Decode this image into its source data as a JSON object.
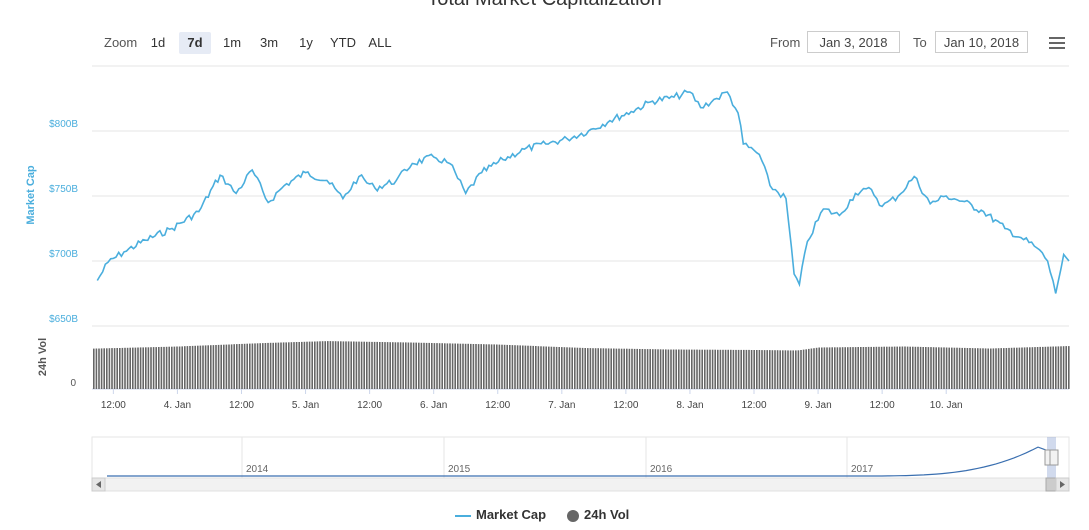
{
  "title": "Total Market Capitalization",
  "toolbar": {
    "zoom_label": "Zoom",
    "zoom_buttons": [
      "1d",
      "7d",
      "1m",
      "3m",
      "1y",
      "YTD",
      "ALL"
    ],
    "active_zoom": "7d",
    "from_label": "From",
    "from_value": "Jan 3, 2018",
    "to_label": "To",
    "to_value": "Jan 10, 2018"
  },
  "colors": {
    "market_cap": "#4aaedd",
    "volume": "#666666",
    "grid": "#e6e6e6",
    "navigator": "#3a6fb0"
  },
  "icons": {
    "menu": "hamburger-menu-icon",
    "scroll_left": "arrow-left-icon",
    "scroll_right": "arrow-right-icon"
  },
  "legend": {
    "market_cap": "Market Cap",
    "volume": "24h Vol"
  },
  "chart_data": {
    "type": "line",
    "xlabel": "",
    "ylabel": "Market Cap",
    "y_ticks": [
      "$800B",
      "$750B",
      "$700B",
      "$650B"
    ],
    "ylim": [
      650,
      850
    ],
    "y_units": "billion USD",
    "x_ticks": [
      "12:00",
      "4. Jan",
      "12:00",
      "5. Jan",
      "12:00",
      "6. Jan",
      "12:00",
      "7. Jan",
      "12:00",
      "8. Jan",
      "12:00",
      "9. Jan",
      "12:00",
      "10. Jan"
    ],
    "xlim": [
      "2018-01-03 08:00",
      "2018-01-10 23:00"
    ],
    "series": [
      {
        "name": "Market Cap",
        "axis": "top",
        "points": [
          [
            "2018-01-03 09:00",
            685
          ],
          [
            "2018-01-03 11:00",
            699
          ],
          [
            "2018-01-03 14:00",
            707
          ],
          [
            "2018-01-03 18:00",
            716
          ],
          [
            "2018-01-03 23:00",
            725
          ],
          [
            "2018-01-04 04:00",
            738
          ],
          [
            "2018-01-04 08:00",
            766
          ],
          [
            "2018-01-04 11:00",
            752
          ],
          [
            "2018-01-04 14:00",
            770
          ],
          [
            "2018-01-04 17:00",
            745
          ],
          [
            "2018-01-04 20:00",
            758
          ],
          [
            "2018-01-05 00:00",
            768
          ],
          [
            "2018-01-05 04:00",
            762
          ],
          [
            "2018-01-05 07:00",
            748
          ],
          [
            "2018-01-05 10:00",
            765
          ],
          [
            "2018-01-05 13:00",
            756
          ],
          [
            "2018-01-05 17:00",
            762
          ],
          [
            "2018-01-05 20:00",
            775
          ],
          [
            "2018-01-06 00:00",
            780
          ],
          [
            "2018-01-06 03:00",
            775
          ],
          [
            "2018-01-06 06:00",
            752
          ],
          [
            "2018-01-06 09:00",
            768
          ],
          [
            "2018-01-06 13:00",
            778
          ],
          [
            "2018-01-06 17:00",
            786
          ],
          [
            "2018-01-06 21:00",
            790
          ],
          [
            "2018-01-07 01:00",
            794
          ],
          [
            "2018-01-07 05:00",
            800
          ],
          [
            "2018-01-07 09:00",
            808
          ],
          [
            "2018-01-07 13:00",
            815
          ],
          [
            "2018-01-07 17:00",
            823
          ],
          [
            "2018-01-07 21:00",
            826
          ],
          [
            "2018-01-08 00:00",
            830
          ],
          [
            "2018-01-08 02:00",
            818
          ],
          [
            "2018-01-08 05:00",
            825
          ],
          [
            "2018-01-08 07:00",
            830
          ],
          [
            "2018-01-08 09:00",
            814
          ],
          [
            "2018-01-08 10:00",
            790
          ],
          [
            "2018-01-08 13:00",
            782
          ],
          [
            "2018-01-08 15:00",
            758
          ],
          [
            "2018-01-08 18:00",
            748
          ],
          [
            "2018-01-08 19:30",
            690
          ],
          [
            "2018-01-08 20:30",
            682
          ],
          [
            "2018-01-08 22:00",
            715
          ],
          [
            "2018-01-09 01:00",
            740
          ],
          [
            "2018-01-09 04:00",
            735
          ],
          [
            "2018-01-09 07:00",
            752
          ],
          [
            "2018-01-09 10:00",
            755
          ],
          [
            "2018-01-09 12:00",
            742
          ],
          [
            "2018-01-09 15:00",
            750
          ],
          [
            "2018-01-09 18:00",
            765
          ],
          [
            "2018-01-09 21:00",
            744
          ],
          [
            "2018-01-10 00:00",
            750
          ],
          [
            "2018-01-10 03:00",
            746
          ],
          [
            "2018-01-10 07:00",
            738
          ],
          [
            "2018-01-10 11:00",
            725
          ],
          [
            "2018-01-10 14:00",
            718
          ],
          [
            "2018-01-10 17:00",
            710
          ],
          [
            "2018-01-10 19:00",
            700
          ],
          [
            "2018-01-10 20:30",
            675
          ],
          [
            "2018-01-10 22:00",
            705
          ],
          [
            "2018-01-10 23:00",
            700
          ]
        ]
      },
      {
        "name": "24h Vol",
        "axis": "bottom",
        "ylabel": "24h Vol",
        "y_ticks": [
          "0"
        ],
        "points": [
          [
            "2018-01-03 09:00",
            0.82
          ],
          [
            "2018-01-04 00:00",
            0.86
          ],
          [
            "2018-01-04 16:00",
            0.93
          ],
          [
            "2018-01-05 04:00",
            0.97
          ],
          [
            "2018-01-05 20:00",
            0.94
          ],
          [
            "2018-01-06 12:00",
            0.9
          ],
          [
            "2018-01-07 04:00",
            0.83
          ],
          [
            "2018-01-07 20:00",
            0.8
          ],
          [
            "2018-01-08 12:00",
            0.79
          ],
          [
            "2018-01-08 20:00",
            0.78
          ],
          [
            "2018-01-09 00:00",
            0.84
          ],
          [
            "2018-01-09 16:00",
            0.86
          ],
          [
            "2018-01-10 08:00",
            0.82
          ],
          [
            "2018-01-10 23:00",
            0.87
          ]
        ]
      }
    ],
    "navigator": {
      "year_labels": [
        "2014",
        "2015",
        "2016",
        "2017"
      ]
    }
  }
}
